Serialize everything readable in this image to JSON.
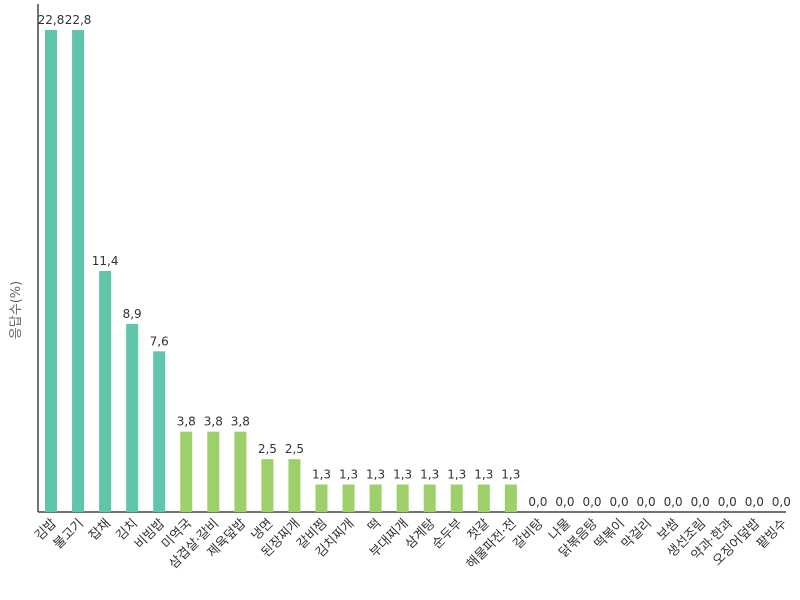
{
  "chart_data": {
    "type": "bar",
    "title": "",
    "xlabel": "",
    "ylabel": "응답수(%)",
    "ylim": [
      0,
      22.8
    ],
    "grid": false,
    "categories": [
      "김밥",
      "불고기",
      "잡채",
      "김치",
      "비빔밥",
      "미역국",
      "삼겹살·갈비",
      "제육덮밥",
      "냉면",
      "된장찌개",
      "갈비찜",
      "김치찌개",
      "떡",
      "부대찌개",
      "삼계탕",
      "순두부",
      "젓갈",
      "해물파전·전",
      "갈비탕",
      "나물",
      "닭볶음탕",
      "떡볶이",
      "막걸리",
      "보쌈",
      "생선조림",
      "약과·한과",
      "오징어덮밥",
      "팥빙수"
    ],
    "values": [
      22.8,
      22.8,
      11.4,
      8.9,
      7.6,
      3.8,
      3.8,
      3.8,
      2.5,
      2.5,
      1.3,
      1.3,
      1.3,
      1.3,
      1.3,
      1.3,
      1.3,
      1.3,
      0.0,
      0.0,
      0.0,
      0.0,
      0.0,
      0.0,
      0.0,
      0.0,
      0.0,
      0.0
    ],
    "value_labels": [
      "22,8",
      "22,8",
      "11,4",
      "8,9",
      "7,6",
      "3,8",
      "3,8",
      "3,8",
      "2,5",
      "2,5",
      "1,3",
      "1,3",
      "1,3",
      "1,3",
      "1,3",
      "1,3",
      "1,3",
      "1,3",
      "0,0",
      "0,0",
      "0,0",
      "0,0",
      "0,0",
      "0,0",
      "0,0",
      "0,0",
      "0,0",
      "0,0"
    ],
    "colors": {
      "top5": "#5fc6ab",
      "rest": "#9dd06a",
      "axis": "#444444"
    }
  }
}
